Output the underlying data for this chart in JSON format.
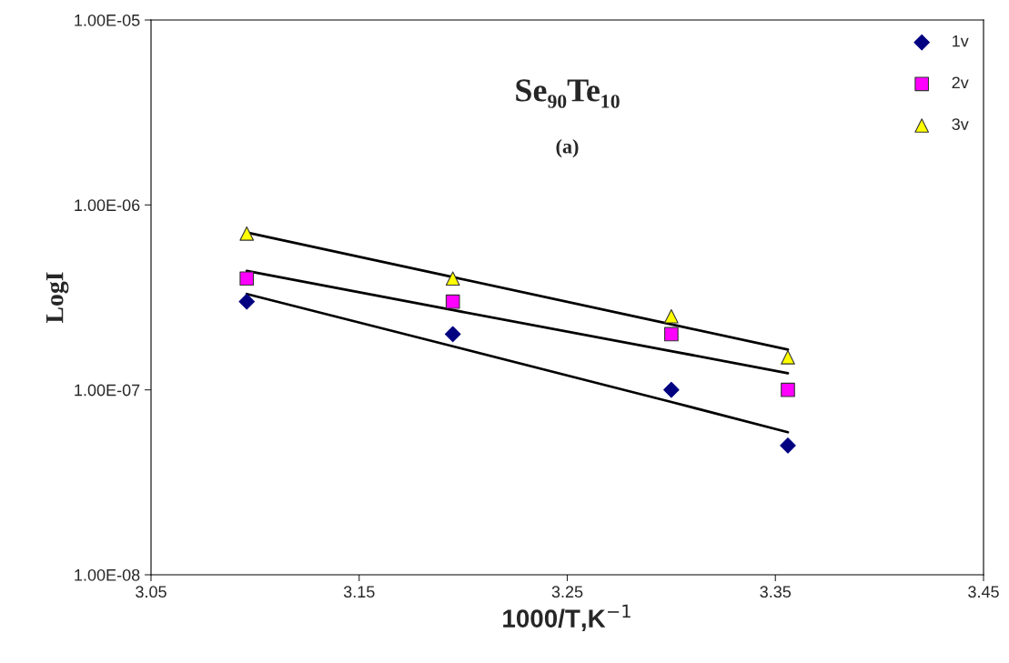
{
  "chart_data": {
    "type": "scatter",
    "title": "Se₉₀Te₁₀",
    "annotations": [
      "(a)"
    ],
    "xlabel": "1000/T,K$^{−1}$",
    "ylabel": "LogI",
    "log": "y",
    "xlim": [
      3.05,
      3.45
    ],
    "xticks": [
      3.05,
      3.15,
      3.25,
      3.35,
      3.45
    ],
    "ylim": [
      1e-08,
      1e-05
    ],
    "yticks": [
      {
        "value": 1e-08,
        "label": "1.00E-08"
      },
      {
        "value": 1e-07,
        "label": "1.00E-07"
      },
      {
        "value": 1e-06,
        "label": "1.00E-06"
      },
      {
        "value": 1e-05,
        "label": "1.00E-05"
      }
    ],
    "grid": false,
    "legend": "top right",
    "x": [
      3.096,
      3.195,
      3.3,
      3.356
    ],
    "series": [
      {
        "name": "1v",
        "color": "#000080",
        "marker": "diamond",
        "values": [
          3e-07,
          2e-07,
          1e-07,
          5e-08
        ]
      },
      {
        "name": "2v",
        "color": "#ff00ff",
        "marker": "square",
        "values": [
          4e-07,
          3e-07,
          2e-07,
          1e-07
        ]
      },
      {
        "name": "3v",
        "color": "#ffff00",
        "marker": "triangle",
        "values": [
          7e-07,
          4e-07,
          2.5e-07,
          1.5e-07
        ]
      },
      {
        "type": "line",
        "color": "#000000",
        "values": [
          3.3e-07,
          1.72e-07,
          8.6e-08,
          5.9e-08
        ]
      },
      {
        "type": "line",
        "color": "#000000",
        "values": [
          4.4e-07,
          2.7e-07,
          1.62e-07,
          1.23e-07
        ]
      },
      {
        "type": "line",
        "color": "#000000",
        "values": [
          7.1e-07,
          4.07e-07,
          2.26e-07,
          1.65e-07
        ]
      }
    ]
  }
}
